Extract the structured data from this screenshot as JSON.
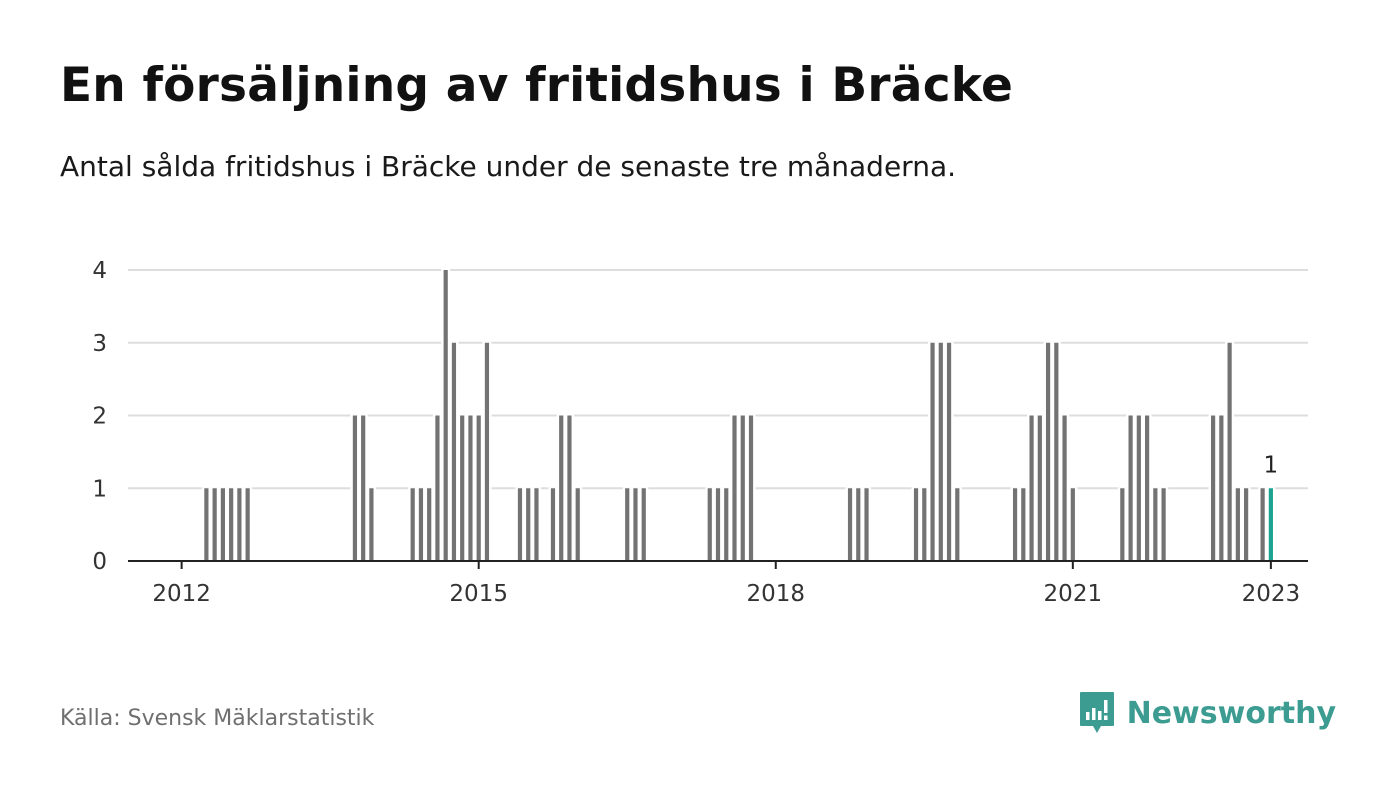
{
  "title": "En försäljning av fritidshus i Bräcke",
  "subtitle": "Antal sålda fritidshus i Bräcke under de senaste tre månaderna.",
  "source": "Källa: Svensk Mäklarstatistik",
  "brand": {
    "name": "Newsworthy",
    "icon": "newsworthy-logo-icon",
    "color": "#3d9c91"
  },
  "colors": {
    "bar": "#737373",
    "highlight": "#1aa390",
    "grid": "#dddddd",
    "axis": "#222222"
  },
  "chart_data": {
    "type": "bar",
    "title": "En försäljning av fritidshus i Bräcke",
    "subtitle": "Antal sålda fritidshus i Bräcke under de senaste tre månaderna.",
    "xlabel": "",
    "ylabel": "",
    "ylim": [
      0,
      4
    ],
    "yticks": [
      0,
      1,
      2,
      3,
      4
    ],
    "xlim": [
      "2011-07",
      "2023-06"
    ],
    "xticks": [
      "2012",
      "2015",
      "2018",
      "2021",
      "2023"
    ],
    "grid": true,
    "legend": "none",
    "highlight": {
      "month": "2023-01",
      "value": 1,
      "label": "1"
    },
    "series": [
      {
        "name": "",
        "points": [
          [
            "2012-04",
            1
          ],
          [
            "2012-05",
            1
          ],
          [
            "2012-06",
            1
          ],
          [
            "2012-07",
            1
          ],
          [
            "2012-08",
            1
          ],
          [
            "2012-09",
            1
          ],
          [
            "2013-10",
            2
          ],
          [
            "2013-11",
            2
          ],
          [
            "2013-12",
            1
          ],
          [
            "2014-05",
            1
          ],
          [
            "2014-06",
            1
          ],
          [
            "2014-07",
            1
          ],
          [
            "2014-08",
            2
          ],
          [
            "2014-09",
            4
          ],
          [
            "2014-10",
            3
          ],
          [
            "2014-11",
            2
          ],
          [
            "2014-12",
            2
          ],
          [
            "2015-01",
            2
          ],
          [
            "2015-02",
            3
          ],
          [
            "2015-06",
            1
          ],
          [
            "2015-07",
            1
          ],
          [
            "2015-08",
            1
          ],
          [
            "2015-10",
            1
          ],
          [
            "2015-11",
            2
          ],
          [
            "2015-12",
            2
          ],
          [
            "2016-01",
            1
          ],
          [
            "2016-07",
            1
          ],
          [
            "2016-08",
            1
          ],
          [
            "2016-09",
            1
          ],
          [
            "2017-05",
            1
          ],
          [
            "2017-06",
            1
          ],
          [
            "2017-07",
            1
          ],
          [
            "2017-08",
            2
          ],
          [
            "2017-09",
            2
          ],
          [
            "2017-10",
            2
          ],
          [
            "2018-10",
            1
          ],
          [
            "2018-11",
            1
          ],
          [
            "2018-12",
            1
          ],
          [
            "2019-06",
            1
          ],
          [
            "2019-07",
            1
          ],
          [
            "2019-08",
            3
          ],
          [
            "2019-09",
            3
          ],
          [
            "2019-10",
            3
          ],
          [
            "2019-11",
            1
          ],
          [
            "2020-06",
            1
          ],
          [
            "2020-07",
            1
          ],
          [
            "2020-08",
            2
          ],
          [
            "2020-09",
            2
          ],
          [
            "2020-10",
            3
          ],
          [
            "2020-11",
            3
          ],
          [
            "2020-12",
            2
          ],
          [
            "2021-01",
            1
          ],
          [
            "2021-07",
            1
          ],
          [
            "2021-08",
            2
          ],
          [
            "2021-09",
            2
          ],
          [
            "2021-10",
            2
          ],
          [
            "2021-11",
            1
          ],
          [
            "2021-12",
            1
          ],
          [
            "2022-06",
            2
          ],
          [
            "2022-07",
            2
          ],
          [
            "2022-08",
            3
          ],
          [
            "2022-09",
            1
          ],
          [
            "2022-10",
            1
          ],
          [
            "2022-12",
            1
          ],
          [
            "2023-01",
            1
          ]
        ]
      }
    ]
  }
}
